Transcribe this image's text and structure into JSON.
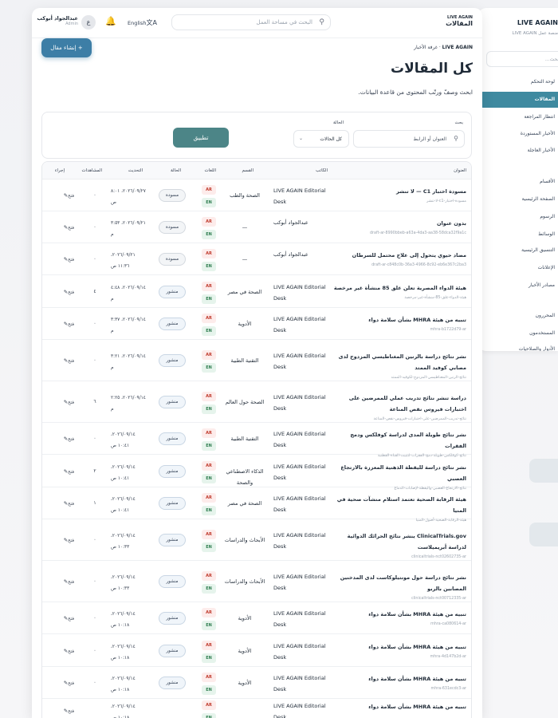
{
  "sidebar": {
    "brand": "LIVE AGAIN",
    "subtitle": "منصة عمل LIVE AGAIN",
    "search_placeholder": "بحث...",
    "items": [
      {
        "label": "لوحة التحكم"
      },
      {
        "label": "المقالات",
        "active": true
      },
      {
        "label": "انتظار المراجعة"
      },
      {
        "label": "الأخبار المستوردة"
      },
      {
        "label": "الأخبار العاجلة"
      },
      {
        "label": "الأقسام"
      },
      {
        "label": "الصفحة الرئيسية"
      },
      {
        "label": "الرسوم"
      },
      {
        "label": "الوسائط"
      },
      {
        "label": "التنسيق الرئيسية"
      },
      {
        "label": "الإعلانات"
      },
      {
        "label": "مصادر الأخبار"
      },
      {
        "label": "المحررون"
      },
      {
        "label": "المستخدمون"
      },
      {
        "label": "الأدوار والصلاحيات"
      }
    ]
  },
  "topbar": {
    "brand_line1": "LIVE AGAIN",
    "brand_line2": "المقالات",
    "search_placeholder": "البحث في مساحة العمل",
    "language": "English",
    "user_initial": "ع",
    "user_name": "عبدالجواد أبوكب",
    "user_role": "Admin"
  },
  "breadcrumb": {
    "root": "LIVE AGAIN",
    "current": "غرفة الأخبار"
  },
  "create_button": "إنشاء مقال",
  "page_title": "كل المقالات",
  "page_subtitle": "ابحث وصفّ ورتّب المحتوى من قاعدة البيانات.",
  "filters": {
    "search_label": "بحث",
    "search_placeholder": "العنوان أو الرابط",
    "status_label": "الحالة",
    "status_value": "كل الحالات",
    "apply_label": "تطبيق"
  },
  "table": {
    "headers": {
      "title": "العنوان",
      "author": "الكاتب",
      "section": "القسم",
      "languages": "اللغات",
      "status": "الحالة",
      "updated": "التحديث",
      "views": "المشاهدات",
      "action": "إجراء"
    },
    "action_label": "فتح",
    "rows": [
      {
        "title": "مسودة اختبار C1 — لا تنشر",
        "slug": "لا-تنشر-c1-مسودة-اختبار",
        "author": "LIVE AGAIN Editorial Desk",
        "section": "الصحة والطب",
        "status": "مسودة",
        "status_type": "draft",
        "updated": "٢٠٢٦/٠٩/٢٧، ٨:٠١ ص",
        "views": "٠"
      },
      {
        "title": "بدون عنوان",
        "slug": "draft-ar-8990bbeb-a63a-4da3-aa38-58dca32f9a1c",
        "author": "عبدالجواد أبوكب",
        "section": "—",
        "status": "مسودة",
        "status_type": "draft",
        "updated": "٢٠٢٦/٠٩/٢١، ٣:٥٣ م",
        "views": "٠"
      },
      {
        "title": "مضاد حيوي يتحول إلى علاج محتمل للسرطان",
        "slug": "draft-ar-c848c0b-36a3-4966-8c92-eb6e367c2ba3",
        "author": "عبدالجواد أبوكب",
        "section": "—",
        "status": "مسودة",
        "status_type": "draft",
        "updated": "٢٠٢٦/٠٩/٢١، ١١:٣٦ ص",
        "views": "٠"
      },
      {
        "title": "هيئة الدواء المصرية تعلن غلق 85 منشأة غير مرخصة",
        "slug": "هيئة-الدواء-غلق-85-منشأة-غير-مرخصة",
        "author": "LIVE AGAIN Editorial Desk",
        "section": "الصحة في مصر",
        "status": "منشور",
        "status_type": "published",
        "updated": "٢٠٢٦/٠٩/١٤، ٤:٤٨ م",
        "views": "٤"
      },
      {
        "title": "تنبيه من هيئة MHRA بشأن سلامة دواء",
        "slug": "mhra-b1722d79-ar",
        "author": "LIVE AGAIN Editorial Desk",
        "section": "الأدوية",
        "status": "منشور",
        "status_type": "published",
        "updated": "٢٠٢٦/٠٩/١٤، ٣:٣٧ م",
        "views": "٠"
      },
      {
        "title": "نشر نتائج دراسة بالرنين المغناطيسي المزدوج لدى مصابي كوفيد الممتد",
        "slug": "نتائج-الرنين-المغناطيسي-المزدوج-لكوفيد-الممتد",
        "author": "LIVE AGAIN Editorial Desk",
        "section": "التقنية الطبية",
        "status": "منشور",
        "status_type": "published",
        "updated": "٢٠٢٦/٠٩/١٤، ٣:٢١ م",
        "views": "٠"
      },
      {
        "title": "دراسة تنشر نتائج تدريب عملي للممرضين على اختبارات فيروس نقص المناعة",
        "slug": "نتائج-تدريب-الممرضين-على-اختبارات-فيروس-نقص-المناعة",
        "author": "LIVE AGAIN Editorial Desk",
        "section": "الصحة حول العالم",
        "status": "منشور",
        "status_type": "published",
        "updated": "٢٠٢٦/٠٩/١٤، ٢:٢٥ م",
        "views": "٦"
      },
      {
        "title": "نشر نتائج طويلة المدى لدراسة كوفلكس ودمج الفقرات",
        "slug": "نتائج-كوفلكس-طويلة-دمج-الفقرات-لتثبيت-القناة-القطنية",
        "author": "LIVE AGAIN Editorial Desk",
        "section": "التقنية الطبية",
        "status": "منشور",
        "status_type": "published",
        "updated": "٢٠٢٦/٠٩/١٤، ١٠:٤١ ص",
        "views": "٠"
      },
      {
        "title": "نشر نتائج دراسة لليقظة الذهنية المعززة بالارتجاع العصبي",
        "slug": "نتائج-الارتجاع-العصبي-واليقظة-لإصابات-الدماغ",
        "author": "LIVE AGAIN Editorial Desk",
        "section": "الذكاء الاصطناعي والصحة",
        "status": "منشور",
        "status_type": "published",
        "updated": "٢٠٢٦/٠٩/١٤، ١٠:٤١ ص",
        "views": "٢"
      },
      {
        "title": "هيئة الرقابة الصحية تعتمد استلام منشآت صحية في المنيا",
        "slug": "هيئة-الرقابة-الصحية-أصول-المنيا",
        "author": "LIVE AGAIN Editorial Desk",
        "section": "الصحة في مصر",
        "status": "منشور",
        "status_type": "published",
        "updated": "٢٠٢٦/٠٩/١٤، ١٠:٤١ ص",
        "views": "١"
      },
      {
        "title": "ClinicalTrials.gov ينشر نتائج الحرائك الدوائية لدراسة أبريميلاست",
        "slug": "clinicaltrials-nct02602735-ar",
        "author": "LIVE AGAIN Editorial Desk",
        "section": "الأبحاث والدراسات",
        "status": "منشور",
        "status_type": "published",
        "updated": "٢٠٢٦/٠٩/١٤، ١٠:٣٣ ص",
        "views": "٠"
      },
      {
        "title": "نشر نتائج دراسة حول مونتيلوكاست لدى المدخنين المصابين بالربو",
        "slug": "clinicaltrials-nct00712335-ar",
        "author": "LIVE AGAIN Editorial Desk",
        "section": "الأبحاث والدراسات",
        "status": "منشور",
        "status_type": "published",
        "updated": "٢٠٢٦/٠٩/١٤، ١٠:٣٣ ص",
        "views": "٠"
      },
      {
        "title": "تنبيه من هيئة MHRA بشأن سلامة دواء",
        "slug": "mhra-ca080614-ar",
        "author": "LIVE AGAIN Editorial Desk",
        "section": "الأدوية",
        "status": "منشور",
        "status_type": "published",
        "updated": "٢٠٢٦/٠٩/١٤، ١٠:١٨ ص",
        "views": "٠"
      },
      {
        "title": "تنبيه من هيئة MHRA بشأن سلامة دواء",
        "slug": "mhra-4d147b2d-ar",
        "author": "LIVE AGAIN Editorial Desk",
        "section": "الأدوية",
        "status": "منشور",
        "status_type": "published",
        "updated": "٢٠٢٦/٠٩/١٤، ١٠:١٨ ص",
        "views": "٠"
      },
      {
        "title": "تنبيه من هيئة MHRA بشأن سلامة دواء",
        "slug": "mhra-631ecdc3-ar",
        "author": "LIVE AGAIN Editorial Desk",
        "section": "الأدوية",
        "status": "منشور",
        "status_type": "published",
        "updated": "٢٠٢٦/٠٩/١٤، ١٠:١٨ ص",
        "views": "٠"
      },
      {
        "title": "تنبيه من هيئة MHRA بشأن سلامة دواء",
        "slug": "",
        "author": "LIVE AGAIN Editorial Desk",
        "section": "",
        "status": "",
        "status_type": "published",
        "updated": "٢٠٢٦/٠٩/١٤، ١٠:١٨ ص",
        "views": ""
      }
    ]
  },
  "colors": {
    "accent": "#3f8aa0",
    "primary_button": "#3d7ea6",
    "apply_button": "#4c8587",
    "lang_ar": "#c0392b",
    "lang_en": "#2e7d4f"
  }
}
